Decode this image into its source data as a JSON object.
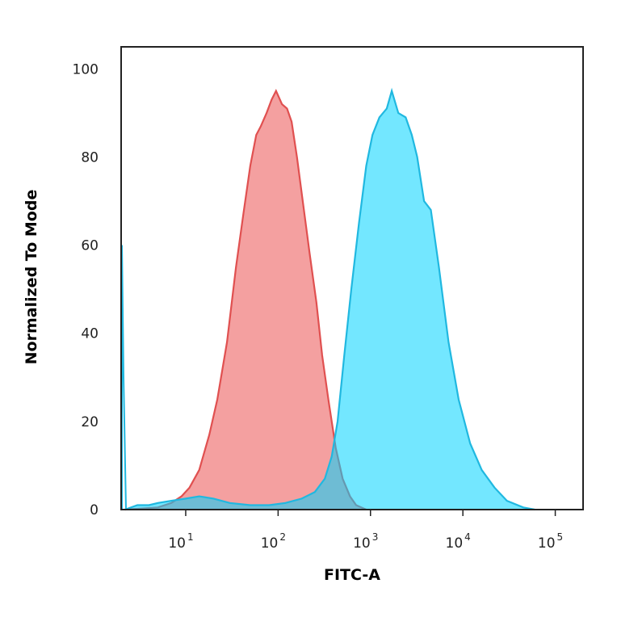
{
  "chart_data": {
    "type": "area",
    "xlabel": "FITC-A",
    "ylabel": "Normalized To Mode",
    "x_scale": "log",
    "xlim": [
      2,
      200000
    ],
    "ylim": [
      0,
      105
    ],
    "x_ticks": [
      {
        "base": "10",
        "exp": "1",
        "value": 10
      },
      {
        "base": "10",
        "exp": "2",
        "value": 100
      },
      {
        "base": "10",
        "exp": "3",
        "value": 1000
      },
      {
        "base": "10",
        "exp": "4",
        "value": 10000
      },
      {
        "base": "10",
        "exp": "5",
        "value": 100000
      }
    ],
    "y_ticks": [
      {
        "label": "0",
        "value": 0
      },
      {
        "label": "20",
        "value": 20
      },
      {
        "label": "40",
        "value": 40
      },
      {
        "label": "60",
        "value": 60
      },
      {
        "label": "80",
        "value": 80
      },
      {
        "label": "100",
        "value": 100
      }
    ],
    "grid": false,
    "series": [
      {
        "color": "#f08080",
        "stroke": "#e05050",
        "points": [
          [
            2.2,
            0
          ],
          [
            5,
            0.5
          ],
          [
            7,
            1.5
          ],
          [
            9,
            3
          ],
          [
            11,
            5
          ],
          [
            14,
            9
          ],
          [
            18,
            17
          ],
          [
            22,
            25
          ],
          [
            28,
            38
          ],
          [
            35,
            55
          ],
          [
            42,
            67
          ],
          [
            50,
            78
          ],
          [
            58,
            85
          ],
          [
            65,
            87
          ],
          [
            75,
            90
          ],
          [
            85,
            93
          ],
          [
            95,
            95
          ],
          [
            110,
            92
          ],
          [
            125,
            91
          ],
          [
            140,
            88
          ],
          [
            160,
            80
          ],
          [
            190,
            68
          ],
          [
            220,
            58
          ],
          [
            260,
            47
          ],
          [
            300,
            35
          ],
          [
            350,
            25
          ],
          [
            420,
            14
          ],
          [
            500,
            7
          ],
          [
            600,
            3
          ],
          [
            700,
            1
          ],
          [
            900,
            0
          ]
        ]
      },
      {
        "color": "#00d4ff",
        "stroke": "#20b8e0",
        "points": [
          [
            2.2,
            0
          ],
          [
            3,
            1
          ],
          [
            4,
            1
          ],
          [
            5,
            1.5
          ],
          [
            7,
            2
          ],
          [
            10,
            2.5
          ],
          [
            14,
            3
          ],
          [
            20,
            2.5
          ],
          [
            30,
            1.5
          ],
          [
            50,
            1
          ],
          [
            80,
            1
          ],
          [
            120,
            1.5
          ],
          [
            180,
            2.5
          ],
          [
            250,
            4
          ],
          [
            320,
            7
          ],
          [
            380,
            12
          ],
          [
            440,
            20
          ],
          [
            520,
            35
          ],
          [
            620,
            50
          ],
          [
            750,
            65
          ],
          [
            900,
            78
          ],
          [
            1050,
            85
          ],
          [
            1250,
            89
          ],
          [
            1500,
            91
          ],
          [
            1700,
            95
          ],
          [
            2000,
            90
          ],
          [
            2400,
            89
          ],
          [
            2800,
            85
          ],
          [
            3200,
            80
          ],
          [
            3800,
            70
          ],
          [
            4500,
            68
          ],
          [
            5500,
            55
          ],
          [
            7000,
            38
          ],
          [
            9000,
            25
          ],
          [
            12000,
            15
          ],
          [
            16000,
            9
          ],
          [
            22000,
            5
          ],
          [
            30000,
            2
          ],
          [
            45000,
            0.5
          ],
          [
            60000,
            0
          ]
        ]
      }
    ]
  }
}
